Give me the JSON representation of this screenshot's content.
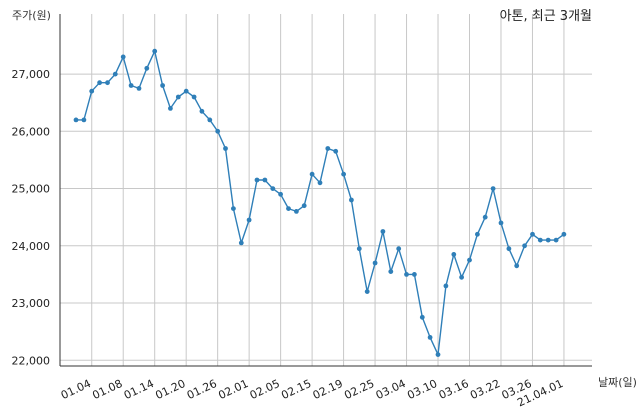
{
  "chart_data": {
    "type": "line",
    "title": "아톤, 최근 3개월",
    "ylabel": "주가(원)",
    "xlabel": "날짜(일)",
    "ylim": [
      21900,
      27700
    ],
    "yticks": [
      22000,
      23000,
      24000,
      25000,
      26000,
      27000
    ],
    "ytick_labels": [
      "22,000",
      "23,000",
      "24,000",
      "25,000",
      "26,000",
      "27,000"
    ],
    "xtick_labels": [
      "01.04",
      "01.08",
      "01.14",
      "01.20",
      "01.26",
      "02.01",
      "02.05",
      "02.15",
      "02.19",
      "02.25",
      "03.04",
      "03.10",
      "03.16",
      "03.22",
      "03.26",
      "21.04.01"
    ],
    "xtick_positions": [
      2,
      6,
      10,
      14,
      18,
      22,
      26,
      30,
      34,
      38,
      42,
      46,
      50,
      54,
      58,
      62
    ],
    "grid": true,
    "series": [
      {
        "color": "#2f7fb8",
        "values": [
          26200,
          26200,
          26700,
          26850,
          26850,
          27000,
          27300,
          26800,
          26750,
          27100,
          27400,
          26800,
          26400,
          26600,
          26700,
          26600,
          26350,
          26200,
          26000,
          25700,
          24650,
          24050,
          24450,
          25150,
          25150,
          25000,
          24900,
          24650,
          24600,
          24700,
          25250,
          25100,
          25700,
          25650,
          25250,
          24800,
          23950,
          23200,
          23700,
          24250,
          23550,
          23950,
          23500,
          23500,
          22750,
          22400,
          22100,
          23300,
          23850,
          23450,
          23750,
          24200,
          24500,
          25000,
          24400,
          23950,
          23650,
          24000,
          24200,
          24100,
          24100,
          24100,
          24200
        ]
      }
    ]
  }
}
